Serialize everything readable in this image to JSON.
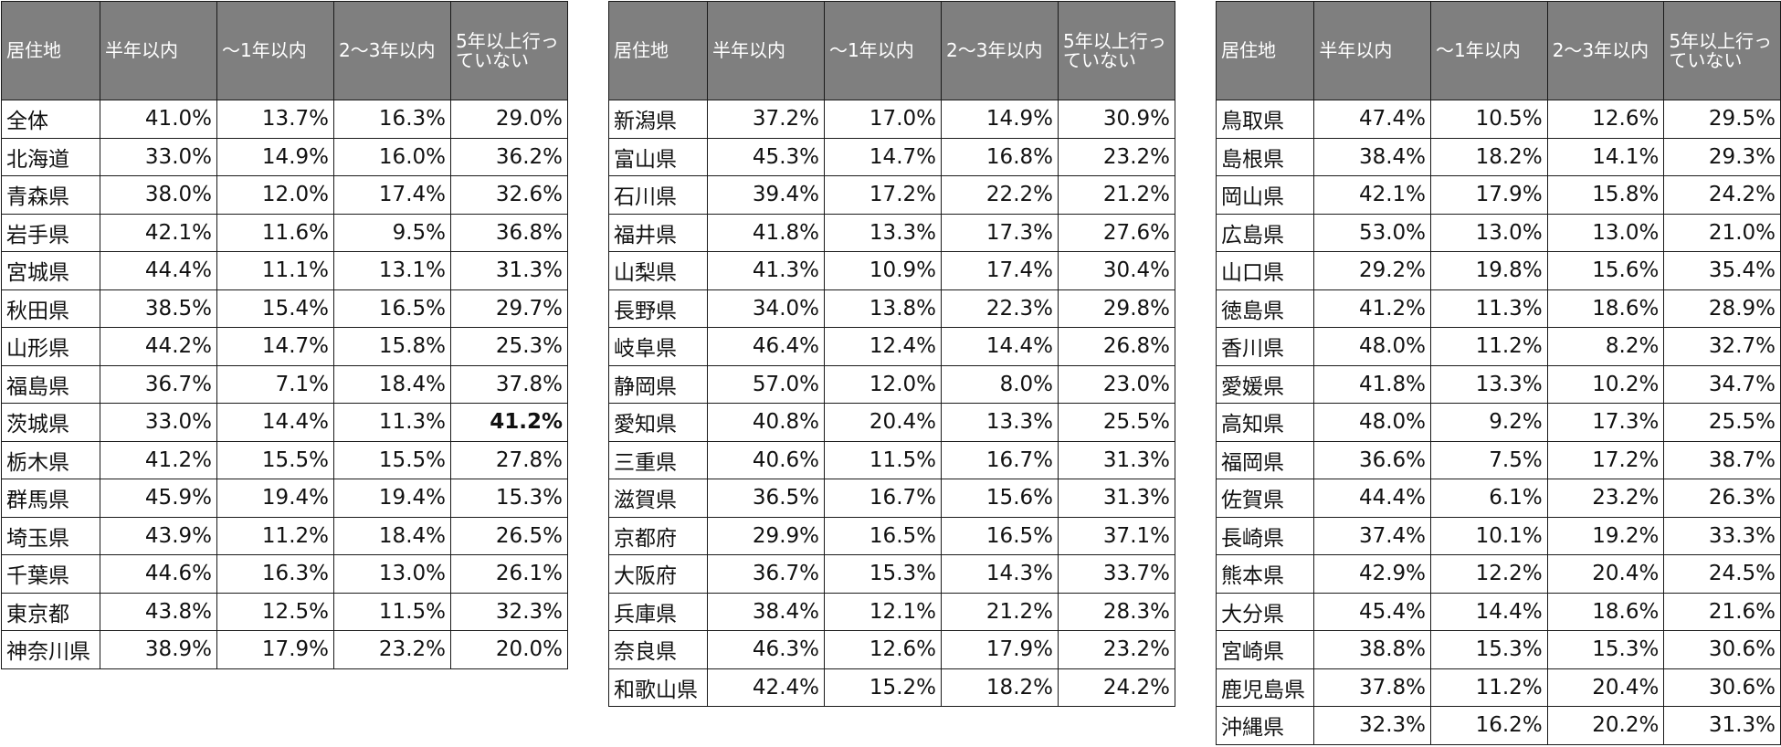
{
  "headers": [
    "居住地",
    "半年以内",
    "～1年以内",
    "2～3年以内",
    "5年以上行っていない"
  ],
  "tables": [
    {
      "rows": [
        {
          "pref": "全体",
          "v": [
            "41.0%",
            "13.7%",
            "16.3%",
            "29.0%"
          ]
        },
        {
          "pref": "北海道",
          "v": [
            "33.0%",
            "14.9%",
            "16.0%",
            "36.2%"
          ]
        },
        {
          "pref": "青森県",
          "v": [
            "38.0%",
            "12.0%",
            "17.4%",
            "32.6%"
          ]
        },
        {
          "pref": "岩手県",
          "v": [
            "42.1%",
            "11.6%",
            "9.5%",
            "36.8%"
          ]
        },
        {
          "pref": "宮城県",
          "v": [
            "44.4%",
            "11.1%",
            "13.1%",
            "31.3%"
          ]
        },
        {
          "pref": "秋田県",
          "v": [
            "38.5%",
            "15.4%",
            "16.5%",
            "29.7%"
          ]
        },
        {
          "pref": "山形県",
          "v": [
            "44.2%",
            "14.7%",
            "15.8%",
            "25.3%"
          ]
        },
        {
          "pref": "福島県",
          "v": [
            "36.7%",
            "7.1%",
            "18.4%",
            "37.8%"
          ]
        },
        {
          "pref": "茨城県",
          "v": [
            "33.0%",
            "14.4%",
            "11.3%",
            "41.2%"
          ],
          "bold": [
            3
          ]
        },
        {
          "pref": "栃木県",
          "v": [
            "41.2%",
            "15.5%",
            "15.5%",
            "27.8%"
          ]
        },
        {
          "pref": "群馬県",
          "v": [
            "45.9%",
            "19.4%",
            "19.4%",
            "15.3%"
          ]
        },
        {
          "pref": "埼玉県",
          "v": [
            "43.9%",
            "11.2%",
            "18.4%",
            "26.5%"
          ]
        },
        {
          "pref": "千葉県",
          "v": [
            "44.6%",
            "16.3%",
            "13.0%",
            "26.1%"
          ]
        },
        {
          "pref": "東京都",
          "v": [
            "43.8%",
            "12.5%",
            "11.5%",
            "32.3%"
          ]
        },
        {
          "pref": "神奈川県",
          "v": [
            "38.9%",
            "17.9%",
            "23.2%",
            "20.0%"
          ]
        }
      ]
    },
    {
      "rows": [
        {
          "pref": "新潟県",
          "v": [
            "37.2%",
            "17.0%",
            "14.9%",
            "30.9%"
          ]
        },
        {
          "pref": "富山県",
          "v": [
            "45.3%",
            "14.7%",
            "16.8%",
            "23.2%"
          ]
        },
        {
          "pref": "石川県",
          "v": [
            "39.4%",
            "17.2%",
            "22.2%",
            "21.2%"
          ]
        },
        {
          "pref": "福井県",
          "v": [
            "41.8%",
            "13.3%",
            "17.3%",
            "27.6%"
          ]
        },
        {
          "pref": "山梨県",
          "v": [
            "41.3%",
            "10.9%",
            "17.4%",
            "30.4%"
          ]
        },
        {
          "pref": "長野県",
          "v": [
            "34.0%",
            "13.8%",
            "22.3%",
            "29.8%"
          ]
        },
        {
          "pref": "岐阜県",
          "v": [
            "46.4%",
            "12.4%",
            "14.4%",
            "26.8%"
          ]
        },
        {
          "pref": "静岡県",
          "v": [
            "57.0%",
            "12.0%",
            "8.0%",
            "23.0%"
          ]
        },
        {
          "pref": "愛知県",
          "v": [
            "40.8%",
            "20.4%",
            "13.3%",
            "25.5%"
          ]
        },
        {
          "pref": "三重県",
          "v": [
            "40.6%",
            "11.5%",
            "16.7%",
            "31.3%"
          ]
        },
        {
          "pref": "滋賀県",
          "v": [
            "36.5%",
            "16.7%",
            "15.6%",
            "31.3%"
          ]
        },
        {
          "pref": "京都府",
          "v": [
            "29.9%",
            "16.5%",
            "16.5%",
            "37.1%"
          ]
        },
        {
          "pref": "大阪府",
          "v": [
            "36.7%",
            "15.3%",
            "14.3%",
            "33.7%"
          ]
        },
        {
          "pref": "兵庫県",
          "v": [
            "38.4%",
            "12.1%",
            "21.2%",
            "28.3%"
          ]
        },
        {
          "pref": "奈良県",
          "v": [
            "46.3%",
            "12.6%",
            "17.9%",
            "23.2%"
          ]
        },
        {
          "pref": "和歌山県",
          "v": [
            "42.4%",
            "15.2%",
            "18.2%",
            "24.2%"
          ]
        }
      ]
    },
    {
      "rows": [
        {
          "pref": "鳥取県",
          "v": [
            "47.4%",
            "10.5%",
            "12.6%",
            "29.5%"
          ]
        },
        {
          "pref": "島根県",
          "v": [
            "38.4%",
            "18.2%",
            "14.1%",
            "29.3%"
          ]
        },
        {
          "pref": "岡山県",
          "v": [
            "42.1%",
            "17.9%",
            "15.8%",
            "24.2%"
          ]
        },
        {
          "pref": "広島県",
          "v": [
            "53.0%",
            "13.0%",
            "13.0%",
            "21.0%"
          ]
        },
        {
          "pref": "山口県",
          "v": [
            "29.2%",
            "19.8%",
            "15.6%",
            "35.4%"
          ]
        },
        {
          "pref": "徳島県",
          "v": [
            "41.2%",
            "11.3%",
            "18.6%",
            "28.9%"
          ]
        },
        {
          "pref": "香川県",
          "v": [
            "48.0%",
            "11.2%",
            "8.2%",
            "32.7%"
          ]
        },
        {
          "pref": "愛媛県",
          "v": [
            "41.8%",
            "13.3%",
            "10.2%",
            "34.7%"
          ]
        },
        {
          "pref": "高知県",
          "v": [
            "48.0%",
            "9.2%",
            "17.3%",
            "25.5%"
          ]
        },
        {
          "pref": "福岡県",
          "v": [
            "36.6%",
            "7.5%",
            "17.2%",
            "38.7%"
          ]
        },
        {
          "pref": "佐賀県",
          "v": [
            "44.4%",
            "6.1%",
            "23.2%",
            "26.3%"
          ]
        },
        {
          "pref": "長崎県",
          "v": [
            "37.4%",
            "10.1%",
            "19.2%",
            "33.3%"
          ]
        },
        {
          "pref": "熊本県",
          "v": [
            "42.9%",
            "12.2%",
            "20.4%",
            "24.5%"
          ]
        },
        {
          "pref": "大分県",
          "v": [
            "45.4%",
            "14.4%",
            "18.6%",
            "21.6%"
          ]
        },
        {
          "pref": "宮崎県",
          "v": [
            "38.8%",
            "15.3%",
            "15.3%",
            "30.6%"
          ]
        },
        {
          "pref": "鹿児島県",
          "v": [
            "37.8%",
            "11.2%",
            "20.4%",
            "30.6%"
          ]
        },
        {
          "pref": "沖縄県",
          "v": [
            "32.3%",
            "16.2%",
            "20.2%",
            "31.3%"
          ]
        }
      ]
    }
  ]
}
